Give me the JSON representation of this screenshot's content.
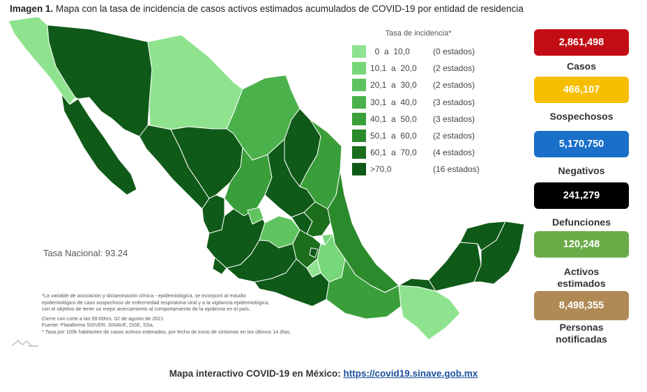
{
  "header": {
    "title_bold": "Imagen 1.",
    "title_rest": " Mapa con la tasa de incidencia de casos activos estimados acumulados de COVID-19 por entidad de residencia"
  },
  "legend": {
    "title": "Tasa de incidencia*",
    "items": [
      {
        "range": "  0  a  10,0",
        "count": "(0 estados)",
        "color": "#8fe38f"
      },
      {
        "range": "10,1  a  20,0",
        "count": "(2 estados)",
        "color": "#77d677"
      },
      {
        "range": "20,1  a  30,0",
        "count": "(2 estados)",
        "color": "#5fc45f"
      },
      {
        "range": "30,1  a  40,0",
        "count": "(3 estados)",
        "color": "#4bb24b"
      },
      {
        "range": "40,1  a  50,0",
        "count": "(3 estados)",
        "color": "#3a9f3a"
      },
      {
        "range": "50,1  a  60,0",
        "count": "(2 estados)",
        "color": "#2b8a2b"
      },
      {
        "range": "60,1  a  70,0",
        "count": "(4 estados)",
        "color": "#1c6e1c"
      },
      {
        "range": ">70,0",
        "count": "(16 estados)",
        "color": "#0f5a18"
      }
    ]
  },
  "tasa_nacional": "Tasa Nacional: 93.24",
  "notes": {
    "line1": "*La variable de asociación y dictaminación clínica - epidemiológica, se incorporó al estudio",
    "line2": "epidemiológico de caso sospechoso de enfermedad respiratoria viral y a la vigilancia epidemiológica,",
    "line3": "con el objetivo de tener un mejor acercamiento al comportamiento de la epidemia en el país.",
    "line4": "Cierre con corte a las 09:00hrs, 02 de agosto de 2021",
    "line5": "Fuente: Plataforma SISVER, SINAVE, DGE, SSa.",
    "line6": "* Tasa por 100k habitantes de casos activos estimados, por fecha de inicio de síntomas en los últimos 14 días."
  },
  "stats": [
    {
      "value": "2,861,498",
      "label": "Casos",
      "color": "#c30d14"
    },
    {
      "value": "466,107",
      "label": "Sospechosos",
      "color": "#f6be00"
    },
    {
      "value": "5,170,750",
      "label": "Negativos",
      "color": "#1a6fc9"
    },
    {
      "value": "241,279",
      "label": "Defunciones",
      "color": "#000000"
    },
    {
      "value": "120,248",
      "label": "Activos estimados",
      "color": "#6aab48"
    },
    {
      "value": "8,498,355",
      "label": "Personas notificadas",
      "color": "#b08a55"
    }
  ],
  "footer": {
    "text": "Mapa interactivo COVID-19 en México: ",
    "link": "https://covid19.sinave.gob.mx"
  }
}
